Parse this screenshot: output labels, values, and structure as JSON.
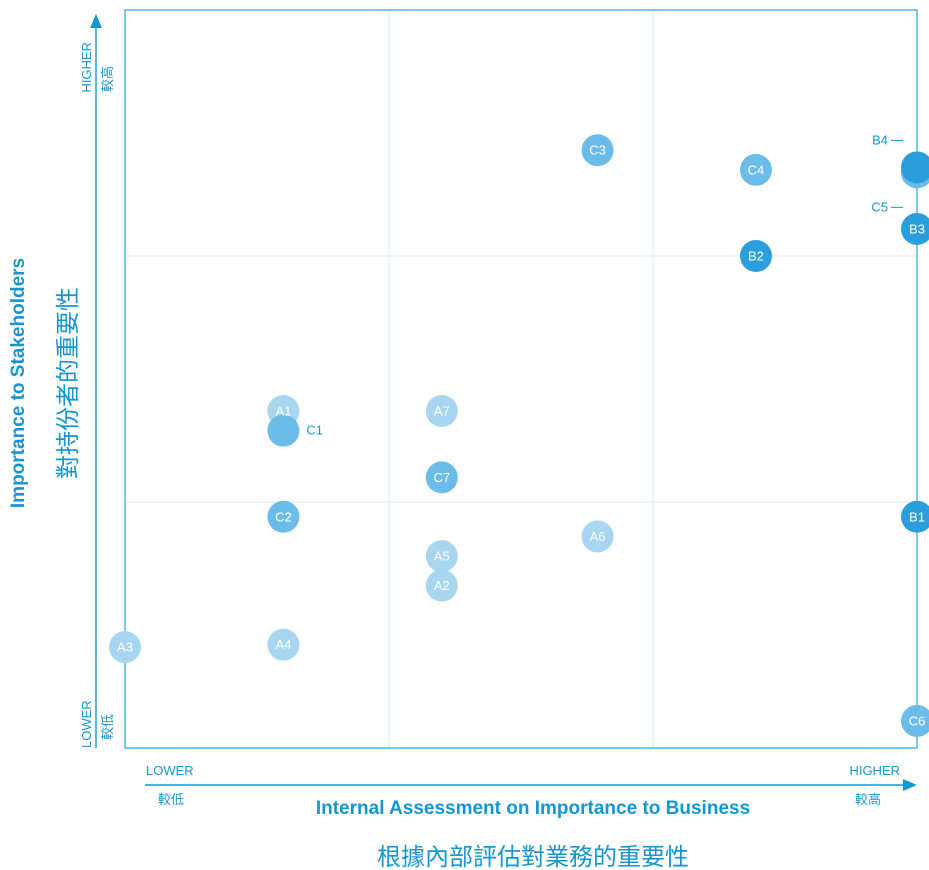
{
  "colors": {
    "accent": "#1596d3",
    "frame": "#2aa1d8",
    "grid": "#d5ecf7",
    "group_a": "#a8d6f1",
    "group_b": "#2b9fdc",
    "group_c": "#6cbcea"
  },
  "axes": {
    "x_title": "Internal Assessment on Importance to Business",
    "x_title_zh": "根據內部評估對業務的重要性",
    "x_low": "LOWER",
    "x_low_zh": "較低",
    "x_high": "HIGHER",
    "x_high_zh": "較高",
    "y_title": "Importance to Stakeholders",
    "y_title_zh": "對持份者的重要性",
    "y_low": "LOWER",
    "y_low_zh": "較低",
    "y_high": "HIGHER",
    "y_high_zh": "較高"
  },
  "chart_data": {
    "type": "scatter",
    "xlim": [
      0,
      3
    ],
    "ylim": [
      0,
      3
    ],
    "grid": true,
    "grid_divisions": 3,
    "points": [
      {
        "label": "A1",
        "group": "A",
        "x": 0.6,
        "y": 1.37
      },
      {
        "label": "A2",
        "group": "A",
        "x": 1.2,
        "y": 0.66
      },
      {
        "label": "A3",
        "group": "A",
        "x": 0.0,
        "y": 0.41
      },
      {
        "label": "A4",
        "group": "A",
        "x": 0.6,
        "y": 0.42
      },
      {
        "label": "A5",
        "group": "A",
        "x": 1.2,
        "y": 0.78
      },
      {
        "label": "A6",
        "group": "A",
        "x": 1.79,
        "y": 0.86
      },
      {
        "label": "A7",
        "group": "A",
        "x": 1.2,
        "y": 1.37
      },
      {
        "label": "B1",
        "group": "B",
        "x": 3.0,
        "y": 0.94
      },
      {
        "label": "B2",
        "group": "B",
        "x": 2.39,
        "y": 2.0
      },
      {
        "label": "B3",
        "group": "B",
        "x": 3.0,
        "y": 2.11
      },
      {
        "label": "B4",
        "group": "B",
        "x": 3.0,
        "y": 2.36
      },
      {
        "label": "C1",
        "group": "C",
        "x": 0.6,
        "y": 1.29
      },
      {
        "label": "C2",
        "group": "C",
        "x": 0.6,
        "y": 0.94
      },
      {
        "label": "C3",
        "group": "C",
        "x": 1.79,
        "y": 2.43
      },
      {
        "label": "C4",
        "group": "C",
        "x": 2.39,
        "y": 2.35
      },
      {
        "label": "C5",
        "group": "C",
        "x": 3.0,
        "y": 2.34
      },
      {
        "label": "C6",
        "group": "C",
        "x": 3.0,
        "y": 0.11
      },
      {
        "label": "C7",
        "group": "C",
        "x": 1.2,
        "y": 1.1
      }
    ],
    "outside_labels": [
      "B4",
      "C5",
      "C1"
    ]
  }
}
